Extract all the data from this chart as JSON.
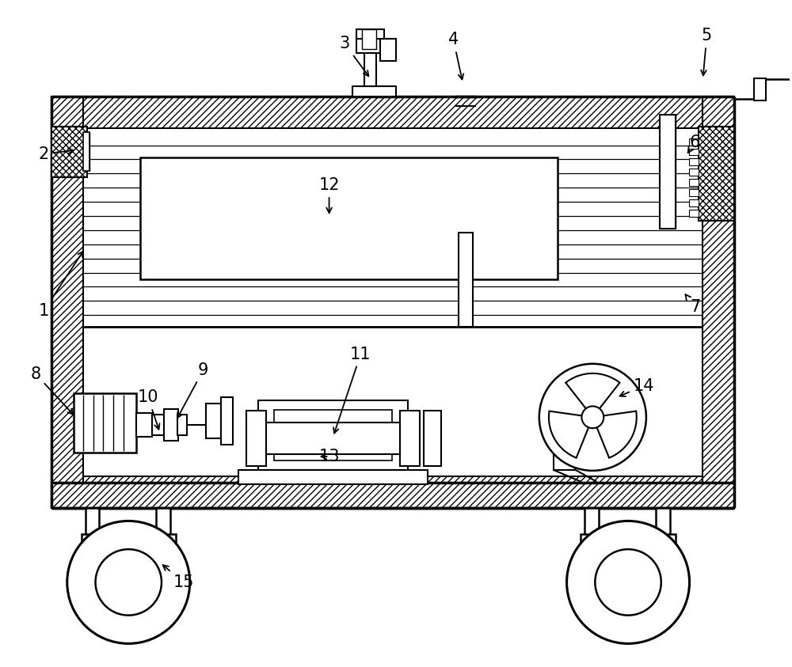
{
  "figsize": [
    10.0,
    8.43
  ],
  "dpi": 100,
  "bg_color": "#ffffff"
}
